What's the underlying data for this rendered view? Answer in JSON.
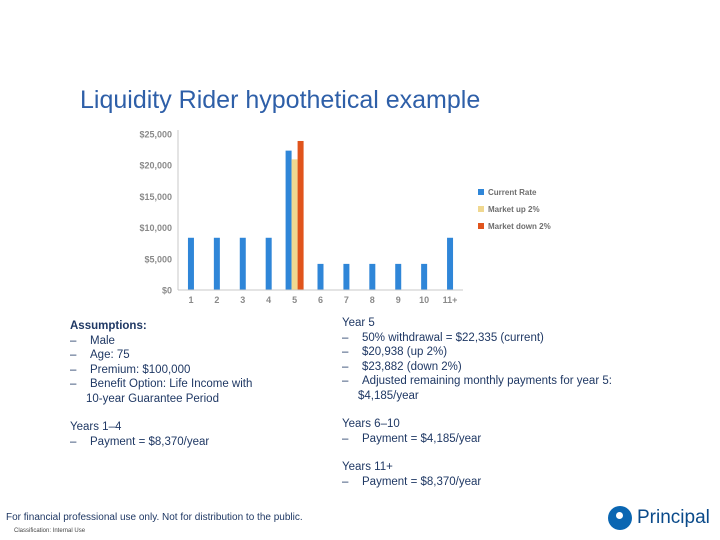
{
  "title": "Liquidity Rider hypothetical example",
  "chart_data": {
    "type": "bar",
    "categories": [
      "1",
      "2",
      "3",
      "4",
      "5",
      "6",
      "7",
      "8",
      "9",
      "10",
      "11+"
    ],
    "series": [
      {
        "name": "Current Rate",
        "color": "#2f86d8",
        "values": [
          8370,
          8370,
          8370,
          8370,
          22335,
          4185,
          4185,
          4185,
          4185,
          4185,
          8370
        ]
      },
      {
        "name": "Market up 2%",
        "color": "#f0d890",
        "values": [
          null,
          null,
          null,
          null,
          20938,
          null,
          null,
          null,
          null,
          null,
          null
        ]
      },
      {
        "name": "Market down 2%",
        "color": "#e0541c",
        "values": [
          null,
          null,
          null,
          null,
          23882,
          null,
          null,
          null,
          null,
          null,
          null
        ]
      }
    ],
    "y_ticks": [
      "$0",
      "$5,000",
      "$10,000",
      "$15,000",
      "$20,000",
      "$25,000"
    ],
    "ylim": [
      0,
      25000
    ],
    "grid": false,
    "legend": "right"
  },
  "assumptions": {
    "heading": "Assumptions:",
    "items": [
      "Male",
      "Age: 75",
      "Premium: $100,000",
      "Benefit Option: Life Income with"
    ],
    "continuation": "10-year Guarantee Period"
  },
  "years_1_4": {
    "heading": "Years 1–4",
    "items": [
      "Payment = $8,370/year"
    ]
  },
  "year_5": {
    "heading": "Year 5",
    "items": [
      "50% withdrawal = $22,335 (current)",
      "$20,938 (up 2%)",
      "$23,882 (down 2%)",
      "Adjusted remaining monthly payments for year 5:"
    ],
    "continuation": "$4,185/year"
  },
  "years_6_10": {
    "heading": "Years 6–10",
    "items": [
      "Payment = $4,185/year"
    ]
  },
  "years_11": {
    "heading": "Years 11+",
    "items": [
      "Payment = $8,370/year"
    ]
  },
  "footer": "For financial professional use only. Not for distribution to the public.",
  "classification": "Classification: Internal Use",
  "logo_text": "Principal"
}
